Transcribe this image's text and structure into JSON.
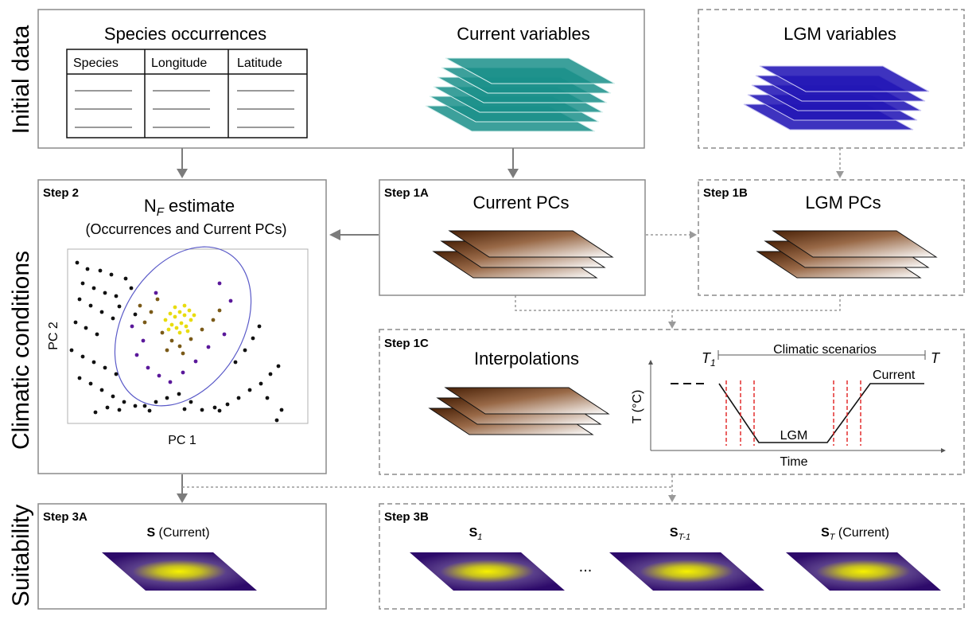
{
  "rows": {
    "initial": "Initial data",
    "climatic": "Climatic conditions",
    "suitability": "Suitability"
  },
  "initial": {
    "occurrences_title": "Species occurrences",
    "table_headers": [
      "Species",
      "Longitude",
      "Latitude"
    ],
    "current_vars_title": "Current variables",
    "lgm_vars_title": "LGM variables"
  },
  "step2": {
    "tag": "Step 2",
    "title_main": "N",
    "title_sub": "F",
    "title_rest": " estimate",
    "subtitle": "(Occurrences and Current PCs)",
    "x_label": "PC 1",
    "y_label": "PC 2"
  },
  "step1a": {
    "tag": "Step 1A",
    "title": "Current PCs"
  },
  "step1b": {
    "tag": "Step 1B",
    "title": "LGM PCs"
  },
  "step1c": {
    "tag": "Step 1C",
    "title": "Interpolations",
    "t1_main": "T",
    "t1_sub": "1",
    "scenarios": "Climatic scenarios",
    "t_end": "T",
    "current": "Current",
    "lgm": "LGM",
    "y_axis": "T (°C)",
    "x_axis": "Time"
  },
  "step3a": {
    "tag": "Step 3A",
    "s_bold": "S",
    "s_rest": " (Current)"
  },
  "step3b": {
    "tag": "Step 3B",
    "s1_bold": "S",
    "s1_sub": "1",
    "ellipsis": "...",
    "st1_bold": "S",
    "st1_sub": "T-1",
    "st_bold": "S",
    "st_sub": "T",
    "st_rest": " (Current)"
  },
  "colors": {
    "teal": "#138a86",
    "blue": "#2217b8",
    "brown": "#5a2d10",
    "viridis_dark": "#3b0f70",
    "viridis_yellow": "#f2e600",
    "dash_red": "#e02020",
    "ellipse": "#5a5ac8"
  },
  "icons": {
    "layers": "stacked-layers-icon",
    "suitability_map": "suitability-map-icon"
  }
}
